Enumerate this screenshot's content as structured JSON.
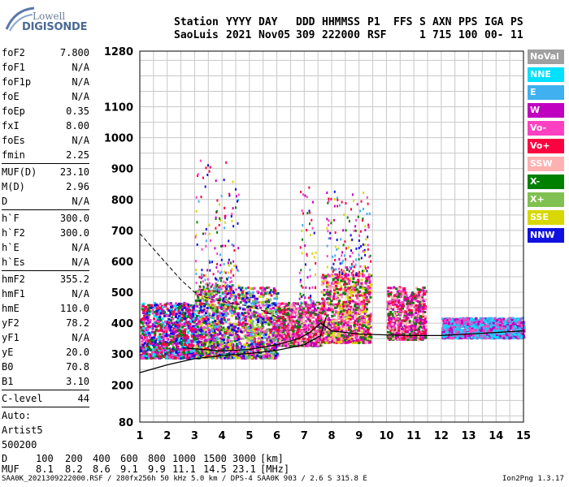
{
  "logo": {
    "line1": "Lowell",
    "line2": "DIGISONDE"
  },
  "header": {
    "row1": [
      "Station",
      "YYYY",
      "DAY",
      "DDD",
      "HHMMSS",
      "P1",
      "FFS",
      "S",
      "AXN",
      "PPS",
      "IGA",
      "PS"
    ],
    "row2": [
      "SaoLuis",
      "2021",
      "Nov05",
      "309",
      "222000",
      "RSF",
      "1",
      "715",
      "100",
      "00-",
      "11"
    ]
  },
  "params": [
    {
      "name": "foF2",
      "value": "7.800"
    },
    {
      "name": "foF1",
      "value": "N/A"
    },
    {
      "name": "foF1p",
      "value": "N/A"
    },
    {
      "name": "foE",
      "value": "N/A"
    },
    {
      "name": "foEp",
      "value": "0.35"
    },
    {
      "name": "fxI",
      "value": "8.00"
    },
    {
      "name": "foEs",
      "value": "N/A"
    },
    {
      "name": "fmin",
      "value": "2.25"
    },
    {
      "sep": true
    },
    {
      "name": "MUF(D)",
      "value": "23.10"
    },
    {
      "name": "M(D)",
      "value": "2.96"
    },
    {
      "name": "D",
      "value": "N/A"
    },
    {
      "sep": true
    },
    {
      "name": "h`F",
      "value": "300.0"
    },
    {
      "name": "h`F2",
      "value": "300.0"
    },
    {
      "name": "h`E",
      "value": "N/A"
    },
    {
      "name": "h`Es",
      "value": "N/A"
    },
    {
      "sep": true
    },
    {
      "name": "hmF2",
      "value": "355.2"
    },
    {
      "name": "hmF1",
      "value": "N/A"
    },
    {
      "name": "hmE",
      "value": "110.0"
    },
    {
      "name": "yF2",
      "value": "78.2"
    },
    {
      "name": "yF1",
      "value": "N/A"
    },
    {
      "name": "yE",
      "value": "20.0"
    },
    {
      "name": "B0",
      "value": "70.8"
    },
    {
      "name": "B1",
      "value": "3.10"
    },
    {
      "sep": true
    },
    {
      "name": "C-level",
      "value": "44"
    },
    {
      "sep": true
    },
    {
      "name": "Auto:",
      "value": ""
    },
    {
      "name": "Artist5",
      "value": ""
    },
    {
      "name": "500200",
      "value": ""
    }
  ],
  "legend": [
    {
      "label": "NoVal",
      "color": "#a0a0a0"
    },
    {
      "label": "NNE",
      "color": "#00e0ff"
    },
    {
      "label": "E",
      "color": "#40b0f0"
    },
    {
      "label": "W",
      "color": "#c000c0"
    },
    {
      "label": "Vo-",
      "color": "#ff40c0"
    },
    {
      "label": "Vo+",
      "color": "#ff0040"
    },
    {
      "label": "SSW",
      "color": "#ffb0b0"
    },
    {
      "label": "X-",
      "color": "#008000"
    },
    {
      "label": "X+",
      "color": "#80c050"
    },
    {
      "label": "SSE",
      "color": "#d8d800"
    },
    {
      "label": "NNW",
      "color": "#1010e0"
    }
  ],
  "chart_data": {
    "type": "scatter",
    "xlim": [
      1,
      15
    ],
    "ylim": [
      80,
      1280
    ],
    "x_ticks": [
      1,
      2,
      3,
      4,
      5,
      6,
      7,
      8,
      9,
      10,
      11,
      12,
      13,
      14,
      15
    ],
    "y_ticks": [
      80,
      200,
      300,
      400,
      500,
      600,
      700,
      800,
      900,
      1000,
      1100,
      1280
    ],
    "grid": true,
    "legend_position": "right",
    "clusters": [
      {
        "name": "F-trace low",
        "x_range": [
          1.0,
          3.0
        ],
        "y_range": [
          290,
          470
        ],
        "colors": [
          "#ff0040",
          "#ff40c0",
          "#c000c0",
          "#1010e0",
          "#00e0ff",
          "#008000"
        ]
      },
      {
        "name": "F-trace main",
        "x_range": [
          3.0,
          6.0
        ],
        "y_range": [
          290,
          520
        ],
        "colors": [
          "#ff0040",
          "#ff40c0",
          "#c000c0",
          "#d8d800",
          "#008000",
          "#80c050",
          "#1010e0",
          "#40b0f0"
        ]
      },
      {
        "name": "F-trace mid",
        "x_range": [
          6.0,
          7.6
        ],
        "y_range": [
          330,
          470
        ],
        "colors": [
          "#ff0040",
          "#ff40c0",
          "#c000c0",
          "#008000",
          "#ffb0b0"
        ]
      },
      {
        "name": "F-trace high",
        "x_range": [
          7.6,
          9.4
        ],
        "y_range": [
          340,
          560
        ],
        "colors": [
          "#ff0040",
          "#ff40c0",
          "#c000c0",
          "#ffb0b0",
          "#008000",
          "#d8d800"
        ]
      },
      {
        "name": "F-trace upper",
        "x_range": [
          10.0,
          11.4
        ],
        "y_range": [
          350,
          520
        ],
        "colors": [
          "#ff0040",
          "#ff40c0",
          "#c000c0",
          "#ffb0b0",
          "#008000"
        ]
      },
      {
        "name": "oblique",
        "x_range": [
          12.0,
          15.0
        ],
        "y_range": [
          355,
          420
        ],
        "colors": [
          "#00e0ff",
          "#40b0f0",
          "#c000c0",
          "#ff40c0"
        ]
      }
    ],
    "scatter_spikes": [
      {
        "x_range": [
          3.0,
          4.6
        ],
        "y_range": [
          520,
          930
        ]
      },
      {
        "x_range": [
          6.8,
          7.4
        ],
        "y_range": [
          470,
          850
        ]
      },
      {
        "x_range": [
          7.8,
          9.4
        ],
        "y_range": [
          560,
          830
        ]
      }
    ],
    "profile_solid": {
      "x": [
        1.0,
        2.0,
        3.0,
        4.0,
        5.0,
        6.0,
        7.0,
        7.6,
        7.8
      ],
      "y": [
        240,
        265,
        285,
        295,
        302,
        312,
        330,
        360,
        420
      ]
    },
    "trace_solid": {
      "x": [
        2.6,
        4.0,
        5.0,
        6.0,
        6.8,
        7.2,
        7.6,
        8.0,
        9.0,
        10.0,
        11.0,
        12.0,
        13.0,
        14.0,
        15.0
      ],
      "y": [
        320,
        310,
        315,
        330,
        350,
        370,
        400,
        375,
        365,
        362,
        360,
        360,
        365,
        370,
        375
      ]
    },
    "trace_dashed": {
      "x": [
        1.0,
        1.5,
        2.0,
        2.5,
        3.0,
        3.5,
        4.0,
        4.5,
        5.0,
        5.5,
        6.0
      ],
      "y": [
        690,
        640,
        590,
        540,
        500,
        480,
        470,
        462,
        455,
        440,
        420
      ]
    }
  },
  "footer": {
    "d_label": "D",
    "d_values": [
      "100",
      "200",
      "400",
      "600",
      "800",
      "1000",
      "1500",
      "3000",
      "[km]"
    ],
    "muf_label": "MUF",
    "muf_values": [
      "8.1",
      "8.2",
      "8.6",
      "9.1",
      "9.9",
      "11.1",
      "14.5",
      "23.1",
      "[MHz]"
    ],
    "status_line": "SAA0K_2021309222000.RSF / 280fx256h 50 kHz 5.0 km / DPS-4 SAA0K 903 / 2.6 S 315.8 E",
    "version": "Ion2Png 1.3.17"
  }
}
